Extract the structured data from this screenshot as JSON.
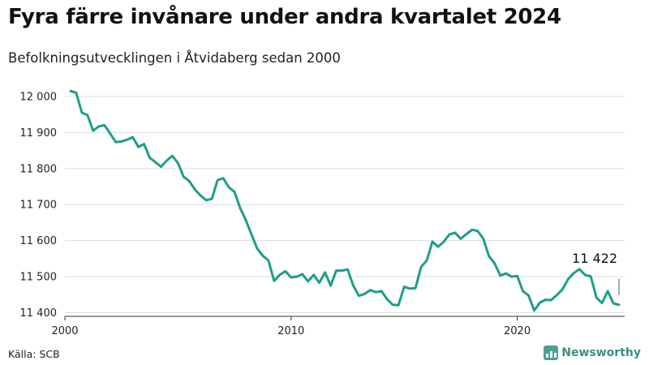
{
  "header": {
    "title": "Fyra färre invånare under andra kvartalet 2024",
    "subtitle": "Befolkningsutvecklingen i Åtvidaberg sedan 2000"
  },
  "footer": {
    "source": "Källa: SCB",
    "brand": "Newsworthy",
    "brand_icon": "bar-chart-logo-icon"
  },
  "colors": {
    "line": "#1f9d8b",
    "grid": "#dddddd",
    "axis": "#333333",
    "brand": "#3b8d83"
  },
  "chart_data": {
    "type": "line",
    "title": "Fyra färre invånare under andra kvartalet 2024",
    "subtitle": "Befolkningsutvecklingen i Åtvidaberg sedan 2000",
    "xlabel": "",
    "ylabel": "",
    "xlim": [
      2000,
      2024.75
    ],
    "ylim": [
      11390,
      12020
    ],
    "yticks": [
      11400,
      11500,
      11600,
      11700,
      11800,
      11900,
      12000
    ],
    "ytick_labels": [
      "11 400",
      "11 500",
      "11 600",
      "11 700",
      "11 800",
      "11 900",
      "12 000"
    ],
    "xticks": [
      2000,
      2010,
      2020
    ],
    "xtick_labels": [
      "2000",
      "2010",
      "2020"
    ],
    "grid": true,
    "series": [
      {
        "x": [
          2000.25,
          2000.5,
          2000.75,
          2001,
          2001.25,
          2001.5,
          2001.75,
          2002,
          2002.25,
          2002.5,
          2002.75,
          2003,
          2003.25,
          2003.5,
          2003.75,
          2004,
          2004.25,
          2004.5,
          2004.75,
          2005,
          2005.25,
          2005.5,
          2005.75,
          2006,
          2006.25,
          2006.5,
          2006.75,
          2007,
          2007.25,
          2007.5,
          2007.75,
          2008,
          2008.25,
          2008.5,
          2008.75,
          2009,
          2009.25,
          2009.5,
          2009.75,
          2010,
          2010.25,
          2010.5,
          2010.75,
          2011,
          2011.25,
          2011.5,
          2011.75,
          2012,
          2012.25,
          2012.5,
          2012.75,
          2013,
          2013.25,
          2013.5,
          2013.75,
          2014,
          2014.25,
          2014.5,
          2014.75,
          2015,
          2015.25,
          2015.5,
          2015.75,
          2016,
          2016.25,
          2016.5,
          2016.75,
          2017,
          2017.25,
          2017.5,
          2017.75,
          2018,
          2018.25,
          2018.5,
          2018.75,
          2019,
          2019.25,
          2019.5,
          2019.75,
          2020,
          2020.25,
          2020.5,
          2020.75,
          2021,
          2021.25,
          2021.5,
          2021.75,
          2022,
          2022.25,
          2022.5,
          2022.75,
          2023,
          2023.25,
          2023.5,
          2023.75,
          2024,
          2024.25,
          2024.5
        ],
        "values": [
          12015,
          12010,
          11955,
          11948,
          11905,
          11917,
          11920,
          11897,
          11873,
          11875,
          11880,
          11887,
          11860,
          11868,
          11830,
          11818,
          11805,
          11822,
          11835,
          11815,
          11777,
          11765,
          11742,
          11725,
          11712,
          11716,
          11768,
          11773,
          11748,
          11735,
          11690,
          11657,
          11617,
          11578,
          11558,
          11545,
          11488,
          11505,
          11515,
          11498,
          11500,
          11507,
          11487,
          11505,
          11483,
          11512,
          11475,
          11517,
          11517,
          11520,
          11475,
          11447,
          11452,
          11463,
          11457,
          11460,
          11437,
          11422,
          11421,
          11472,
          11467,
          11468,
          11527,
          11545,
          11597,
          11583,
          11597,
          11617,
          11622,
          11605,
          11618,
          11630,
          11627,
          11605,
          11557,
          11537,
          11503,
          11509,
          11500,
          11502,
          11460,
          11448,
          11406,
          11428,
          11436,
          11435,
          11449,
          11465,
          11493,
          11510,
          11521,
          11505,
          11501,
          11442,
          11427,
          11460,
          11426,
          11422
        ]
      }
    ],
    "annotations": [
      {
        "text": "11 422",
        "x": 2024.5,
        "y": 11422
      }
    ]
  }
}
